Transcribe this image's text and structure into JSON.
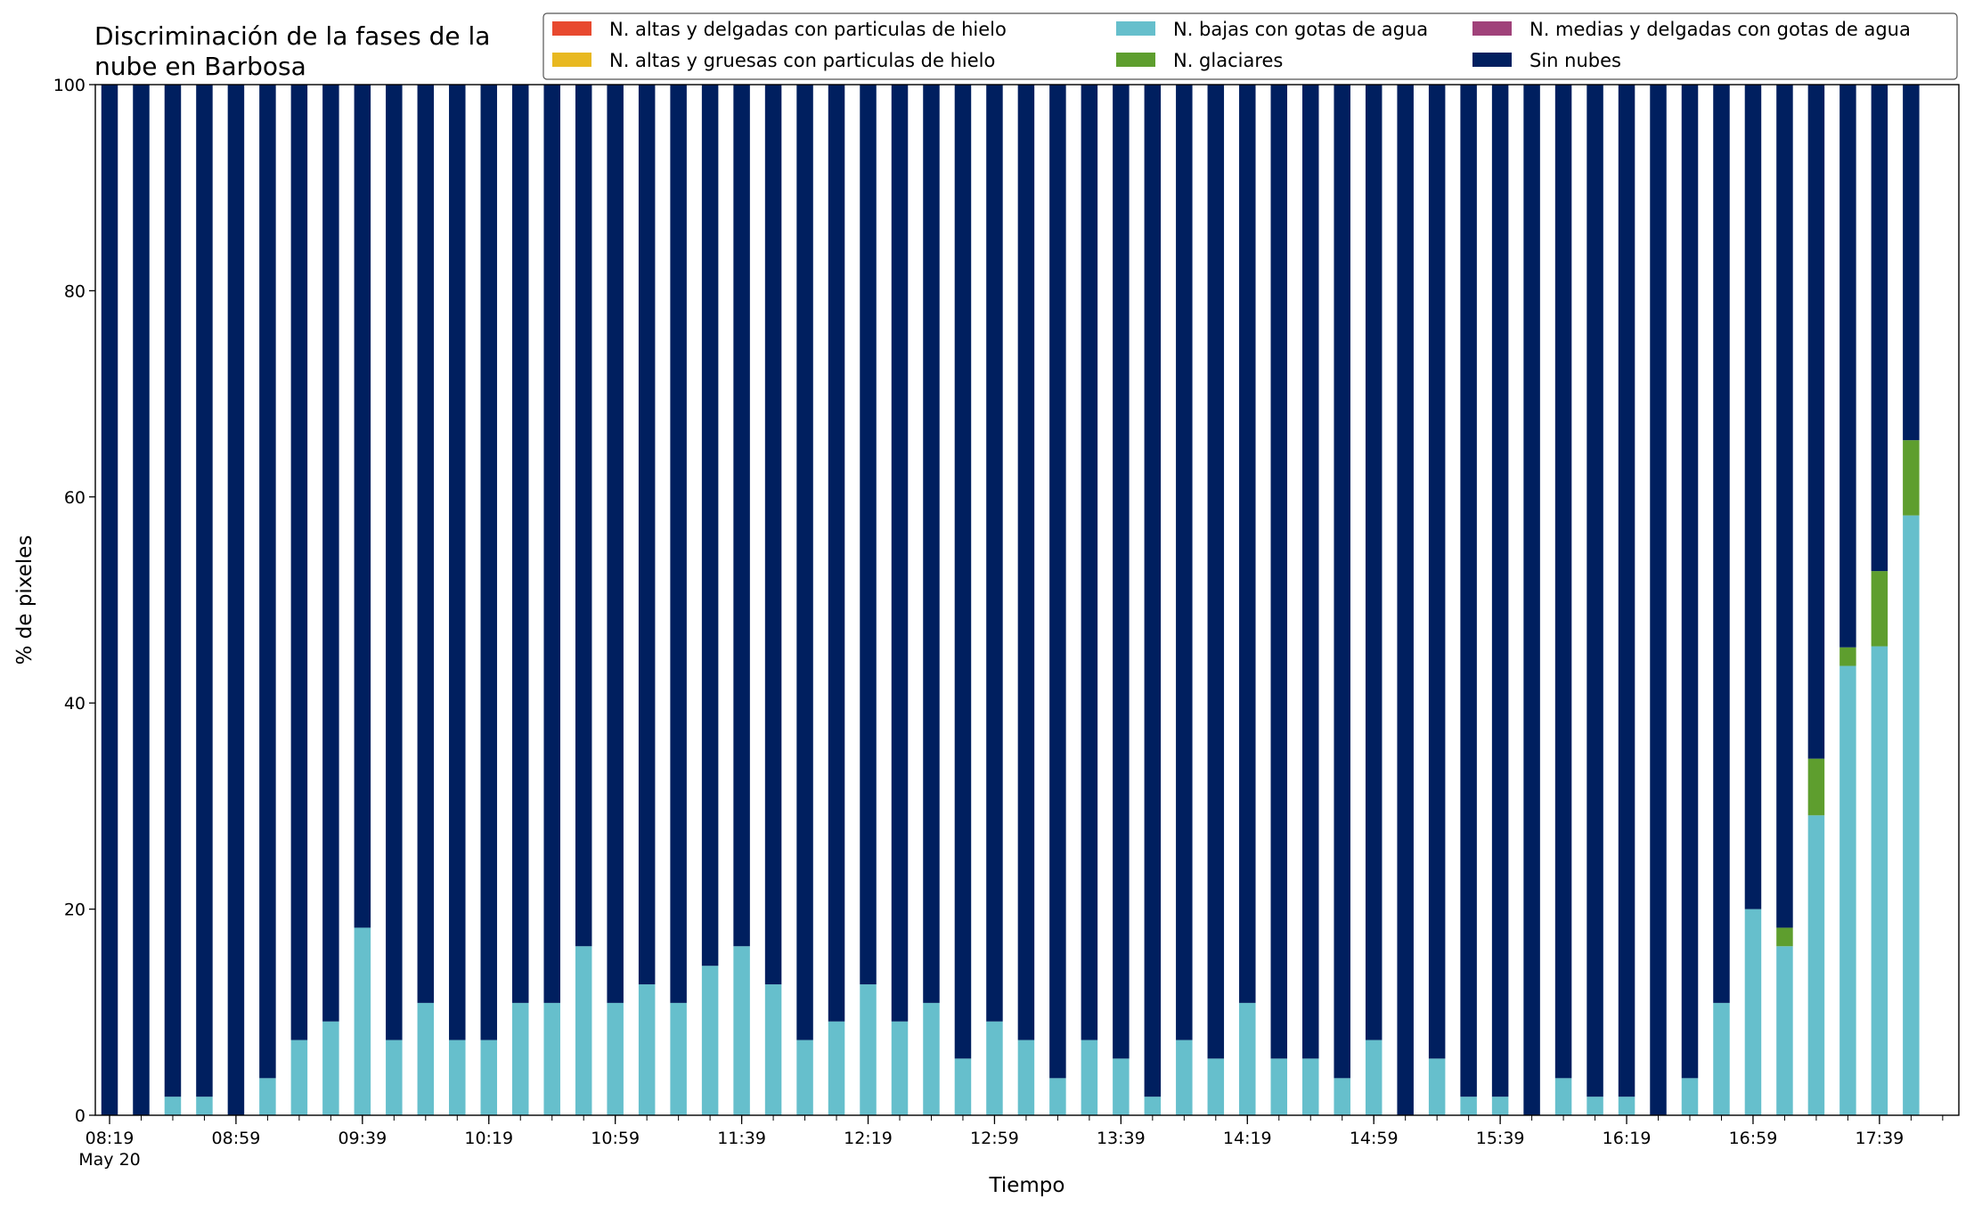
{
  "chart_data": {
    "type": "bar",
    "stacked": true,
    "title_lines": [
      "Discriminación de la fases de la",
      "nube en Barbosa"
    ],
    "xlabel": "Tiempo",
    "ylabel": "% de pixeles",
    "ylim": [
      0,
      100
    ],
    "yticks": [
      0,
      20,
      40,
      60,
      80,
      100
    ],
    "xtick_labels": [
      "08:19",
      "08:59",
      "09:39",
      "10:19",
      "10:59",
      "11:39",
      "12:19",
      "12:59",
      "13:39",
      "14:19",
      "14:59",
      "15:39",
      "16:19",
      "16:59",
      "17:39"
    ],
    "xtick_sublabel": "May 20",
    "legend_position": "top-right",
    "grid": false,
    "categories": [
      "08:19",
      "08:29",
      "08:39",
      "08:49",
      "08:59",
      "09:09",
      "09:19",
      "09:29",
      "09:39",
      "09:49",
      "09:59",
      "10:09",
      "10:19",
      "10:29",
      "10:39",
      "10:49",
      "10:59",
      "11:09",
      "11:19",
      "11:29",
      "11:39",
      "11:49",
      "11:59",
      "12:09",
      "12:19",
      "12:29",
      "12:39",
      "12:49",
      "12:59",
      "13:09",
      "13:19",
      "13:29",
      "13:39",
      "13:49",
      "13:59",
      "14:09",
      "14:19",
      "14:29",
      "14:39",
      "14:49",
      "14:59",
      "15:09",
      "15:19",
      "15:29",
      "15:39",
      "15:49",
      "15:59",
      "16:09",
      "16:19",
      "16:29",
      "16:39",
      "16:49",
      "16:59",
      "17:09",
      "17:19",
      "17:29",
      "17:39",
      "17:49"
    ],
    "series": [
      {
        "name": "N. altas y delgadas con particulas de hielo",
        "color": "#e8492f",
        "values": [
          0,
          0,
          0,
          0,
          0,
          0,
          0,
          0,
          0,
          0,
          0,
          0,
          0,
          0,
          0,
          0,
          0,
          0,
          0,
          0,
          0,
          0,
          0,
          0,
          0,
          0,
          0,
          0,
          0,
          0,
          0,
          0,
          0,
          0,
          0,
          0,
          0,
          0,
          0,
          0,
          0,
          0,
          0,
          0,
          0,
          0,
          0,
          0,
          0,
          0,
          0,
          0,
          0,
          0,
          0,
          0,
          0,
          0
        ]
      },
      {
        "name": "N. altas y gruesas con particulas de hielo",
        "color": "#e8b820",
        "values": [
          0,
          0,
          0,
          0,
          0,
          0,
          0,
          0,
          0,
          0,
          0,
          0,
          0,
          0,
          0,
          0,
          0,
          0,
          0,
          0,
          0,
          0,
          0,
          0,
          0,
          0,
          0,
          0,
          0,
          0,
          0,
          0,
          0,
          0,
          0,
          0,
          0,
          0,
          0,
          0,
          0,
          0,
          0,
          0,
          0,
          0,
          0,
          0,
          0,
          0,
          0,
          0,
          0,
          0,
          0,
          0,
          0,
          0
        ]
      },
      {
        "name": "N. bajas con gotas de agua",
        "color": "#66bfcc",
        "values": [
          0,
          0,
          1.8,
          1.8,
          0,
          3.6,
          7.3,
          9.1,
          18.2,
          7.3,
          10.9,
          7.3,
          7.3,
          10.9,
          10.9,
          16.4,
          10.9,
          12.7,
          10.9,
          14.5,
          16.4,
          12.7,
          7.3,
          9.1,
          12.7,
          9.1,
          10.9,
          5.5,
          9.1,
          7.3,
          3.6,
          7.3,
          5.5,
          1.8,
          7.3,
          5.5,
          10.9,
          5.5,
          5.5,
          3.6,
          7.3,
          0,
          5.5,
          1.8,
          1.8,
          0,
          3.6,
          1.8,
          1.8,
          0,
          3.6,
          10.9,
          20.0,
          16.4,
          29.1,
          43.6,
          45.5,
          58.2
        ]
      },
      {
        "name": "N. medias y delgadas con gotas de agua",
        "color": "#a0427a",
        "values": [
          0,
          0,
          0,
          0,
          0,
          0,
          0,
          0,
          0,
          0,
          0,
          0,
          0,
          0,
          0,
          0,
          0,
          0,
          0,
          0,
          0,
          0,
          0,
          0,
          0,
          0,
          0,
          0,
          0,
          0,
          0,
          0,
          0,
          0,
          0,
          0,
          0,
          0,
          0,
          0,
          0,
          0,
          0,
          0,
          0,
          0,
          0,
          0,
          0,
          0,
          0,
          0,
          0,
          0,
          0,
          0,
          0,
          0
        ]
      },
      {
        "name": "N. glaciares",
        "color": "#5e9e2e",
        "values": [
          0,
          0,
          0,
          0,
          0,
          0,
          0,
          0,
          0,
          0,
          0,
          0,
          0,
          0,
          0,
          0,
          0,
          0,
          0,
          0,
          0,
          0,
          0,
          0,
          0,
          0,
          0,
          0,
          0,
          0,
          0,
          0,
          0,
          0,
          0,
          0,
          0,
          0,
          0,
          0,
          0,
          0,
          0,
          0,
          0,
          0,
          0,
          0,
          0,
          0,
          0,
          0,
          0,
          1.8,
          5.5,
          1.8,
          7.3,
          7.3
        ]
      },
      {
        "name": "Sin nubes",
        "color": "#001f5f",
        "values": [
          100,
          100,
          98.2,
          98.2,
          100,
          96.4,
          92.7,
          90.9,
          81.8,
          92.7,
          89.1,
          92.7,
          92.7,
          89.1,
          89.1,
          83.6,
          89.1,
          87.3,
          89.1,
          85.5,
          83.6,
          87.3,
          92.7,
          90.9,
          87.3,
          90.9,
          89.1,
          94.5,
          90.9,
          92.7,
          96.4,
          92.7,
          94.5,
          98.2,
          92.7,
          94.5,
          89.1,
          94.5,
          94.5,
          96.4,
          92.7,
          100,
          94.5,
          98.2,
          98.2,
          100,
          96.4,
          98.2,
          98.2,
          100,
          96.4,
          89.1,
          80.0,
          81.8,
          65.4,
          54.6,
          47.2,
          34.5
        ]
      }
    ],
    "legend_order": [
      0,
      1,
      2,
      4,
      3,
      5
    ]
  }
}
